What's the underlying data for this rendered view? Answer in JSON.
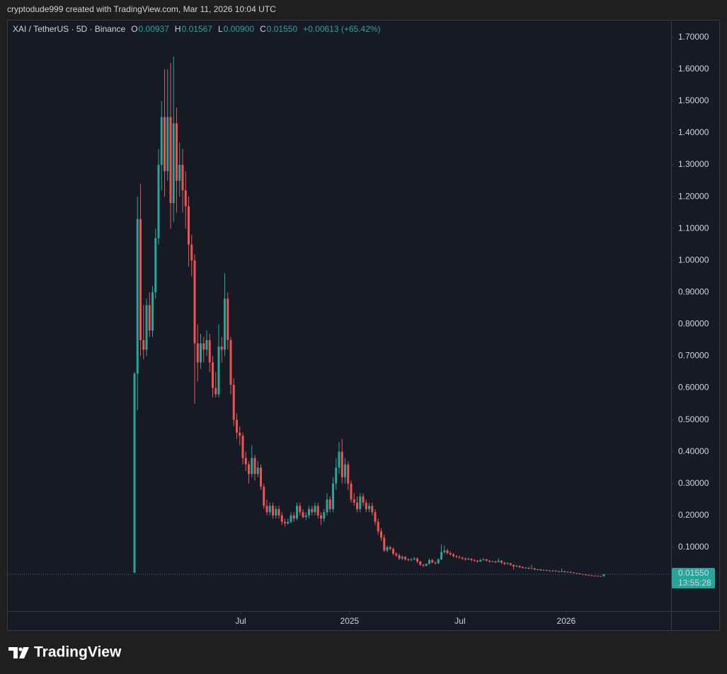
{
  "header": {
    "attribution": "cryptodude999 created with TradingView.com, Mar 11, 2026 10:04 UTC"
  },
  "chart_data": {
    "type": "candlestick",
    "symbol": "XAI / TetherUS · 5D · Binance",
    "ohlc_letters": [
      "O",
      "H",
      "L",
      "C"
    ],
    "last_labels": [
      "0.00937",
      "0.01567",
      "0.00900",
      "0.01550"
    ],
    "change_label": "+0.00613 (+65.42%)",
    "countdown": "13:55:28",
    "up_color": "#26a69a",
    "down_color": "#ef5350",
    "candles": [
      [
        0.02,
        0.65,
        0.02,
        0.645
      ],
      [
        0.645,
        1.2,
        0.53,
        1.13
      ],
      [
        1.13,
        1.24,
        0.7,
        0.75
      ],
      [
        0.75,
        0.86,
        0.69,
        0.72
      ],
      [
        0.72,
        0.88,
        0.7,
        0.86
      ],
      [
        0.86,
        0.9,
        0.76,
        0.78
      ],
      [
        0.78,
        0.92,
        0.76,
        0.9
      ],
      [
        0.9,
        1.1,
        0.88,
        1.07
      ],
      [
        1.07,
        1.35,
        1.05,
        1.3
      ],
      [
        1.3,
        1.5,
        1.22,
        1.45
      ],
      [
        1.45,
        1.6,
        1.2,
        1.28
      ],
      [
        1.28,
        1.6,
        1.25,
        1.45
      ],
      [
        1.45,
        1.62,
        1.1,
        1.18
      ],
      [
        1.18,
        1.64,
        1.12,
        1.43
      ],
      [
        1.43,
        1.48,
        1.15,
        1.25
      ],
      [
        1.25,
        1.37,
        1.2,
        1.3
      ],
      [
        1.3,
        1.35,
        1.15,
        1.22
      ],
      [
        1.22,
        1.28,
        1.1,
        1.17
      ],
      [
        1.17,
        1.2,
        0.98,
        1.05
      ],
      [
        1.05,
        1.08,
        0.95,
        1.0
      ],
      [
        1.0,
        1.02,
        0.55,
        0.74
      ],
      [
        0.74,
        0.8,
        0.62,
        0.68
      ],
      [
        0.68,
        0.77,
        0.66,
        0.74
      ],
      [
        0.74,
        0.76,
        0.68,
        0.72
      ],
      [
        0.72,
        0.78,
        0.7,
        0.75
      ],
      [
        0.75,
        0.77,
        0.65,
        0.68
      ],
      [
        0.68,
        0.7,
        0.57,
        0.6
      ],
      [
        0.6,
        0.65,
        0.57,
        0.58
      ],
      [
        0.58,
        0.8,
        0.57,
        0.73
      ],
      [
        0.73,
        0.76,
        0.68,
        0.72
      ],
      [
        0.72,
        0.96,
        0.7,
        0.88
      ],
      [
        0.88,
        0.9,
        0.72,
        0.75
      ],
      [
        0.75,
        0.76,
        0.58,
        0.61
      ],
      [
        0.61,
        0.63,
        0.48,
        0.5
      ],
      [
        0.5,
        0.52,
        0.44,
        0.46
      ],
      [
        0.46,
        0.48,
        0.42,
        0.45
      ],
      [
        0.45,
        0.46,
        0.36,
        0.38
      ],
      [
        0.38,
        0.4,
        0.34,
        0.36
      ],
      [
        0.36,
        0.37,
        0.3,
        0.33
      ],
      [
        0.33,
        0.42,
        0.32,
        0.38
      ],
      [
        0.38,
        0.39,
        0.31,
        0.33
      ],
      [
        0.33,
        0.37,
        0.32,
        0.35
      ],
      [
        0.35,
        0.36,
        0.28,
        0.29
      ],
      [
        0.29,
        0.3,
        0.22,
        0.23
      ],
      [
        0.23,
        0.25,
        0.2,
        0.21
      ],
      [
        0.21,
        0.24,
        0.2,
        0.23
      ],
      [
        0.23,
        0.24,
        0.19,
        0.2
      ],
      [
        0.2,
        0.23,
        0.19,
        0.22
      ],
      [
        0.22,
        0.23,
        0.19,
        0.2
      ],
      [
        0.2,
        0.21,
        0.17,
        0.18
      ],
      [
        0.18,
        0.19,
        0.165,
        0.175
      ],
      [
        0.175,
        0.19,
        0.17,
        0.18
      ],
      [
        0.18,
        0.21,
        0.175,
        0.2
      ],
      [
        0.2,
        0.21,
        0.18,
        0.19
      ],
      [
        0.19,
        0.24,
        0.185,
        0.23
      ],
      [
        0.23,
        0.24,
        0.2,
        0.21
      ],
      [
        0.21,
        0.22,
        0.19,
        0.195
      ],
      [
        0.195,
        0.21,
        0.185,
        0.2
      ],
      [
        0.2,
        0.23,
        0.19,
        0.22
      ],
      [
        0.22,
        0.23,
        0.2,
        0.21
      ],
      [
        0.21,
        0.24,
        0.2,
        0.23
      ],
      [
        0.23,
        0.24,
        0.19,
        0.2
      ],
      [
        0.2,
        0.21,
        0.17,
        0.19
      ],
      [
        0.19,
        0.22,
        0.18,
        0.21
      ],
      [
        0.21,
        0.27,
        0.2,
        0.25
      ],
      [
        0.25,
        0.26,
        0.21,
        0.22
      ],
      [
        0.22,
        0.32,
        0.21,
        0.3
      ],
      [
        0.3,
        0.38,
        0.28,
        0.35
      ],
      [
        0.35,
        0.43,
        0.33,
        0.4
      ],
      [
        0.4,
        0.44,
        0.3,
        0.32
      ],
      [
        0.32,
        0.38,
        0.3,
        0.36
      ],
      [
        0.36,
        0.37,
        0.28,
        0.3
      ],
      [
        0.3,
        0.31,
        0.24,
        0.25
      ],
      [
        0.25,
        0.27,
        0.23,
        0.24
      ],
      [
        0.24,
        0.26,
        0.21,
        0.22
      ],
      [
        0.22,
        0.27,
        0.21,
        0.26
      ],
      [
        0.26,
        0.27,
        0.23,
        0.24
      ],
      [
        0.24,
        0.25,
        0.21,
        0.22
      ],
      [
        0.22,
        0.24,
        0.21,
        0.23
      ],
      [
        0.23,
        0.24,
        0.2,
        0.21
      ],
      [
        0.21,
        0.22,
        0.17,
        0.18
      ],
      [
        0.18,
        0.19,
        0.14,
        0.15
      ],
      [
        0.15,
        0.16,
        0.12,
        0.13
      ],
      [
        0.13,
        0.14,
        0.085,
        0.09
      ],
      [
        0.09,
        0.105,
        0.085,
        0.1
      ],
      [
        0.1,
        0.105,
        0.09,
        0.095
      ],
      [
        0.095,
        0.1,
        0.075,
        0.08
      ],
      [
        0.08,
        0.085,
        0.07,
        0.075
      ],
      [
        0.075,
        0.08,
        0.06,
        0.065
      ],
      [
        0.065,
        0.075,
        0.06,
        0.07
      ],
      [
        0.07,
        0.072,
        0.058,
        0.062
      ],
      [
        0.062,
        0.066,
        0.056,
        0.06
      ],
      [
        0.06,
        0.066,
        0.056,
        0.062
      ],
      [
        0.062,
        0.07,
        0.06,
        0.065
      ],
      [
        0.065,
        0.068,
        0.05,
        0.055
      ],
      [
        0.055,
        0.058,
        0.042,
        0.045
      ],
      [
        0.045,
        0.048,
        0.038,
        0.042
      ],
      [
        0.042,
        0.05,
        0.04,
        0.048
      ],
      [
        0.048,
        0.065,
        0.046,
        0.06
      ],
      [
        0.06,
        0.064,
        0.05,
        0.052
      ],
      [
        0.052,
        0.056,
        0.046,
        0.05
      ],
      [
        0.05,
        0.066,
        0.048,
        0.062
      ],
      [
        0.062,
        0.11,
        0.06,
        0.085
      ],
      [
        0.085,
        0.105,
        0.08,
        0.09
      ],
      [
        0.09,
        0.095,
        0.078,
        0.082
      ],
      [
        0.082,
        0.088,
        0.074,
        0.078
      ],
      [
        0.078,
        0.082,
        0.068,
        0.072
      ],
      [
        0.072,
        0.076,
        0.066,
        0.07
      ],
      [
        0.07,
        0.074,
        0.064,
        0.068
      ],
      [
        0.068,
        0.07,
        0.06,
        0.065
      ],
      [
        0.065,
        0.068,
        0.058,
        0.062
      ],
      [
        0.062,
        0.068,
        0.06,
        0.064
      ],
      [
        0.064,
        0.066,
        0.056,
        0.06
      ],
      [
        0.06,
        0.063,
        0.054,
        0.058
      ],
      [
        0.058,
        0.06,
        0.052,
        0.055
      ],
      [
        0.055,
        0.064,
        0.054,
        0.06
      ],
      [
        0.06,
        0.066,
        0.058,
        0.062
      ],
      [
        0.062,
        0.064,
        0.055,
        0.058
      ],
      [
        0.058,
        0.06,
        0.052,
        0.055
      ],
      [
        0.055,
        0.059,
        0.053,
        0.056
      ],
      [
        0.056,
        0.058,
        0.05,
        0.054
      ],
      [
        0.054,
        0.066,
        0.052,
        0.058
      ],
      [
        0.058,
        0.06,
        0.048,
        0.052
      ],
      [
        0.052,
        0.054,
        0.044,
        0.048
      ],
      [
        0.048,
        0.053,
        0.046,
        0.05
      ],
      [
        0.05,
        0.051,
        0.042,
        0.045
      ],
      [
        0.045,
        0.046,
        0.03,
        0.04
      ],
      [
        0.04,
        0.045,
        0.038,
        0.042
      ],
      [
        0.042,
        0.043,
        0.035,
        0.038
      ],
      [
        0.038,
        0.04,
        0.033,
        0.035
      ],
      [
        0.035,
        0.038,
        0.033,
        0.036
      ],
      [
        0.036,
        0.037,
        0.031,
        0.033
      ],
      [
        0.033,
        0.045,
        0.032,
        0.034
      ],
      [
        0.034,
        0.035,
        0.028,
        0.03
      ],
      [
        0.03,
        0.033,
        0.029,
        0.031
      ],
      [
        0.031,
        0.032,
        0.026,
        0.028
      ],
      [
        0.028,
        0.031,
        0.027,
        0.029
      ],
      [
        0.029,
        0.03,
        0.025,
        0.027
      ],
      [
        0.027,
        0.028,
        0.024,
        0.026
      ],
      [
        0.026,
        0.029,
        0.025,
        0.027
      ],
      [
        0.027,
        0.028,
        0.023,
        0.025
      ],
      [
        0.025,
        0.026,
        0.022,
        0.024
      ],
      [
        0.024,
        0.033,
        0.023,
        0.025
      ],
      [
        0.025,
        0.026,
        0.021,
        0.022
      ],
      [
        0.022,
        0.025,
        0.021,
        0.023
      ],
      [
        0.023,
        0.024,
        0.019,
        0.021
      ],
      [
        0.021,
        0.022,
        0.018,
        0.019
      ],
      [
        0.019,
        0.02,
        0.017,
        0.018
      ],
      [
        0.018,
        0.019,
        0.015,
        0.016
      ],
      [
        0.016,
        0.017,
        0.014,
        0.015
      ],
      [
        0.015,
        0.016,
        0.012,
        0.013
      ],
      [
        0.013,
        0.014,
        0.011,
        0.012
      ],
      [
        0.012,
        0.013,
        0.0105,
        0.011
      ],
      [
        0.011,
        0.012,
        0.0098,
        0.0105
      ],
      [
        0.0105,
        0.011,
        0.0092,
        0.0098
      ],
      [
        0.0098,
        0.0102,
        0.0088,
        0.00937
      ],
      [
        0.00937,
        0.01567,
        0.009,
        0.0155
      ]
    ],
    "xlim": [
      -42.35,
      178.35
    ],
    "xticks": [
      {
        "value": 35.3,
        "label": "Jul"
      },
      {
        "value": 71.5,
        "label": "2025"
      },
      {
        "value": 108.2,
        "label": "Jul"
      },
      {
        "value": 143.5,
        "label": "2026"
      }
    ],
    "ylim": [
      -0.1,
      1.755
    ],
    "yticks": [
      {
        "value": 0.1,
        "label": "0.10000"
      },
      {
        "value": 0.2,
        "label": "0.20000"
      },
      {
        "value": 0.3,
        "label": "0.30000"
      },
      {
        "value": 0.4,
        "label": "0.40000"
      },
      {
        "value": 0.5,
        "label": "0.50000"
      },
      {
        "value": 0.6,
        "label": "0.60000"
      },
      {
        "value": 0.7,
        "label": "0.70000"
      },
      {
        "value": 0.8,
        "label": "0.80000"
      },
      {
        "value": 0.9,
        "label": "0.90000"
      },
      {
        "value": 1.0,
        "label": "1.00000"
      },
      {
        "value": 1.1,
        "label": "1.10000"
      },
      {
        "value": 1.2,
        "label": "1.20000"
      },
      {
        "value": 1.3,
        "label": "1.30000"
      },
      {
        "value": 1.4,
        "label": "1.40000"
      },
      {
        "value": 1.5,
        "label": "1.50000"
      },
      {
        "value": 1.6,
        "label": "1.60000"
      },
      {
        "value": 1.7,
        "label": "1.70000"
      }
    ]
  },
  "footer": {
    "logo": "TradingView"
  }
}
